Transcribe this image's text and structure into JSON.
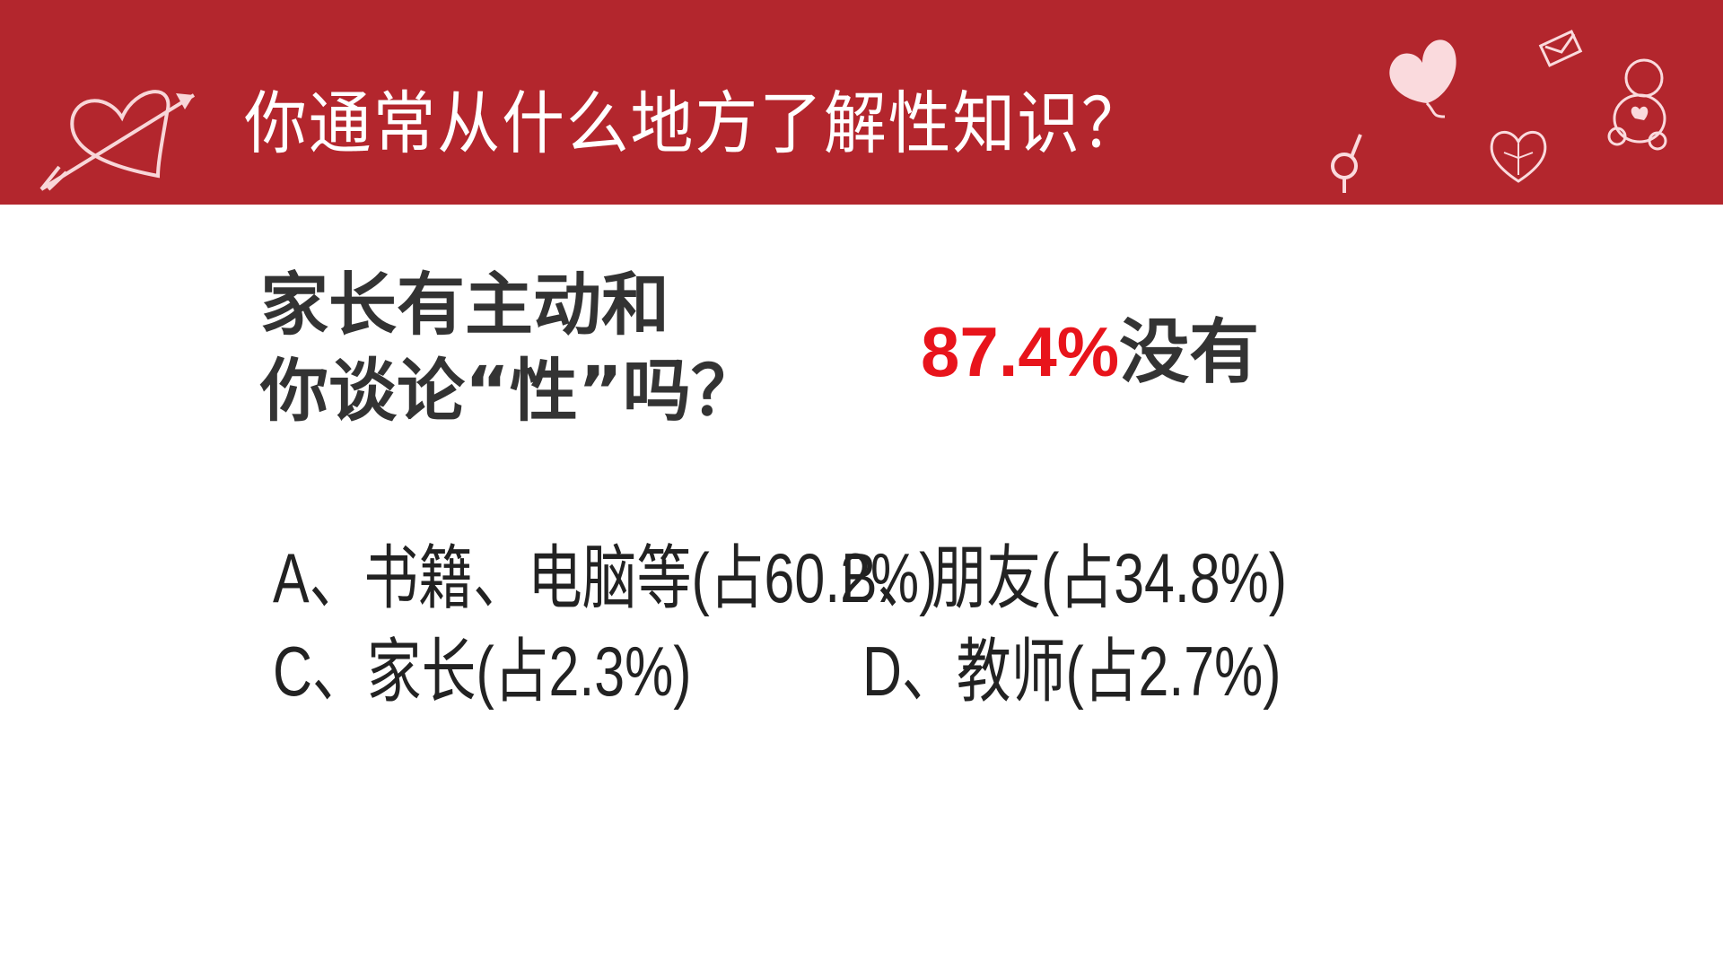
{
  "header": {
    "title": "你通常从什么地方了解性知识？",
    "background_color": "#b3262d",
    "decorations": [
      "heart-arrow-icon",
      "heart-balloon-icon",
      "envelope-icon",
      "teddy-bear-icon",
      "gender-symbol-icon",
      "heart-gift-icon"
    ]
  },
  "question": {
    "line1": "家长有主动和",
    "line2": "你谈论“性”吗？"
  },
  "answer": {
    "percent": "87.4%",
    "label": "没有",
    "accent_color": "#e8141b"
  },
  "options": [
    {
      "text": "A、书籍、电脑等(占60.2%)"
    },
    {
      "text": "B、朋友(占34.8%)"
    },
    {
      "text": "C、家长(占2.3%)"
    },
    {
      "text": "D、教师(占2.7%)"
    }
  ]
}
